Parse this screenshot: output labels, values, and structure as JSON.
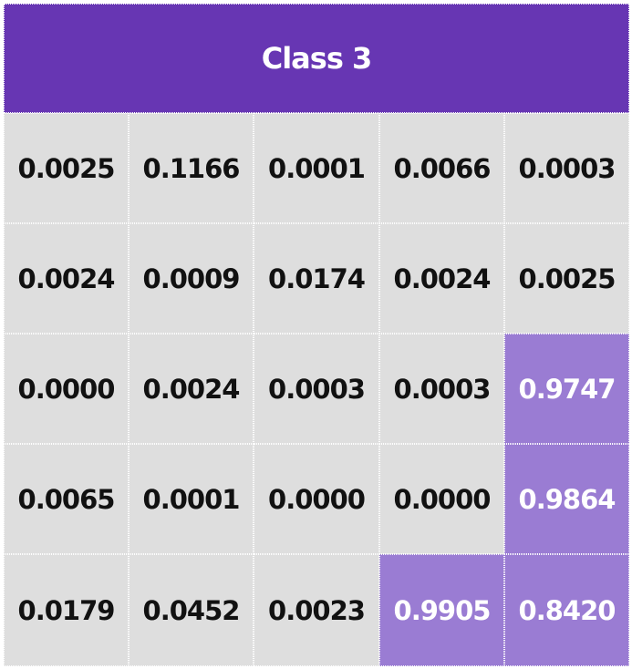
{
  "chart_data": {
    "type": "heatmap",
    "title": "Class 3",
    "rows": [
      [
        "0.0025",
        "0.1166",
        "0.0001",
        "0.0066",
        "0.0003"
      ],
      [
        "0.0024",
        "0.0009",
        "0.0174",
        "0.0024",
        "0.0025"
      ],
      [
        "0.0000",
        "0.0024",
        "0.0003",
        "0.0003",
        "0.9747"
      ],
      [
        "0.0065",
        "0.0001",
        "0.0000",
        "0.0000",
        "0.9864"
      ],
      [
        "0.0179",
        "0.0452",
        "0.0023",
        "0.9905",
        "0.8420"
      ]
    ],
    "highlighted": [
      [
        false,
        false,
        false,
        false,
        false
      ],
      [
        false,
        false,
        false,
        false,
        false
      ],
      [
        false,
        false,
        false,
        false,
        true
      ],
      [
        false,
        false,
        false,
        false,
        true
      ],
      [
        false,
        false,
        false,
        true,
        true
      ]
    ]
  },
  "colors": {
    "header_bg": "#6736b3",
    "cell_bg": "#dedede",
    "highlight_bg": "#9a7cd3",
    "text_dark": "#111111",
    "text_light": "#ffffff"
  }
}
